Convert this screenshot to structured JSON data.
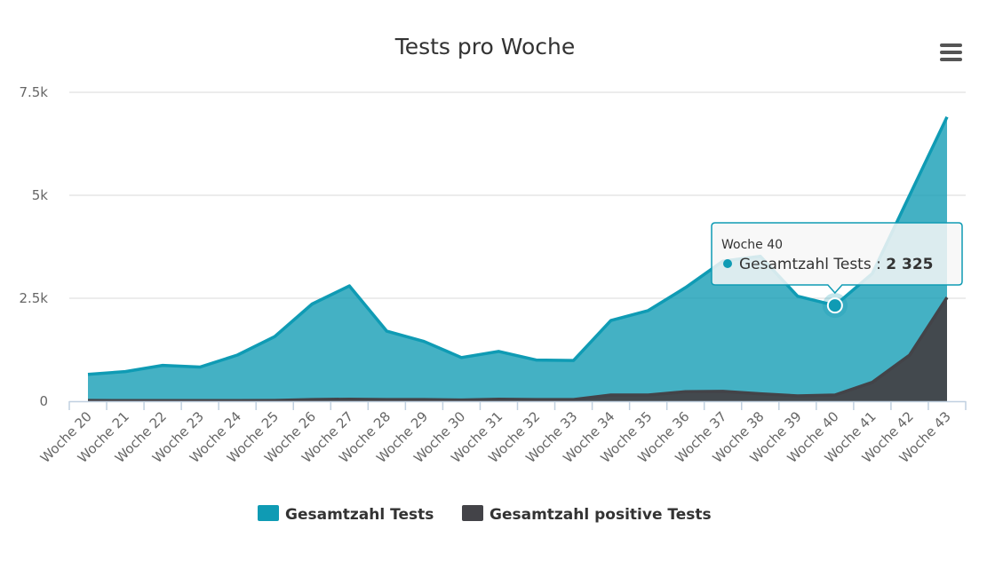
{
  "chart_data": {
    "type": "area",
    "title": "Tests pro Woche",
    "categories": [
      "Woche 20",
      "Woche 21",
      "Woche 22",
      "Woche 23",
      "Woche 24",
      "Woche 25",
      "Woche 26",
      "Woche 27",
      "Woche 28",
      "Woche 29",
      "Woche 30",
      "Woche 31",
      "Woche 32",
      "Woche 33",
      "Woche 34",
      "Woche 35",
      "Woche 36",
      "Woche 37",
      "Woche 38",
      "Woche 39",
      "Woche 40",
      "Woche 41",
      "Woche 42",
      "Woche 43"
    ],
    "series": [
      {
        "name": "Gesamtzahl Tests",
        "color": "#0f9bb4",
        "values": [
          650,
          720,
          870,
          830,
          1120,
          1570,
          2360,
          2800,
          1700,
          1450,
          1060,
          1210,
          1000,
          990,
          1960,
          2200,
          2760,
          3400,
          3520,
          2550,
          2325,
          3100,
          5000,
          6900
        ]
      },
      {
        "name": "Gesamtzahl positive Tests",
        "color": "#434348",
        "values": [
          20,
          15,
          15,
          15,
          15,
          20,
          40,
          50,
          40,
          40,
          30,
          50,
          40,
          40,
          150,
          150,
          230,
          240,
          180,
          130,
          150,
          460,
          1120,
          2520
        ]
      }
    ],
    "yticks": [
      "0",
      "2.5k",
      "5k",
      "7.5k"
    ],
    "ylim": [
      0,
      7500
    ],
    "grid": true,
    "legend_position": "bottom-center",
    "tooltip": {
      "category": "Woche 40",
      "series": "Gesamtzahl Tests",
      "separator": " : ",
      "value_label": "2 325"
    }
  },
  "menu_icon": "hamburger-menu-icon"
}
